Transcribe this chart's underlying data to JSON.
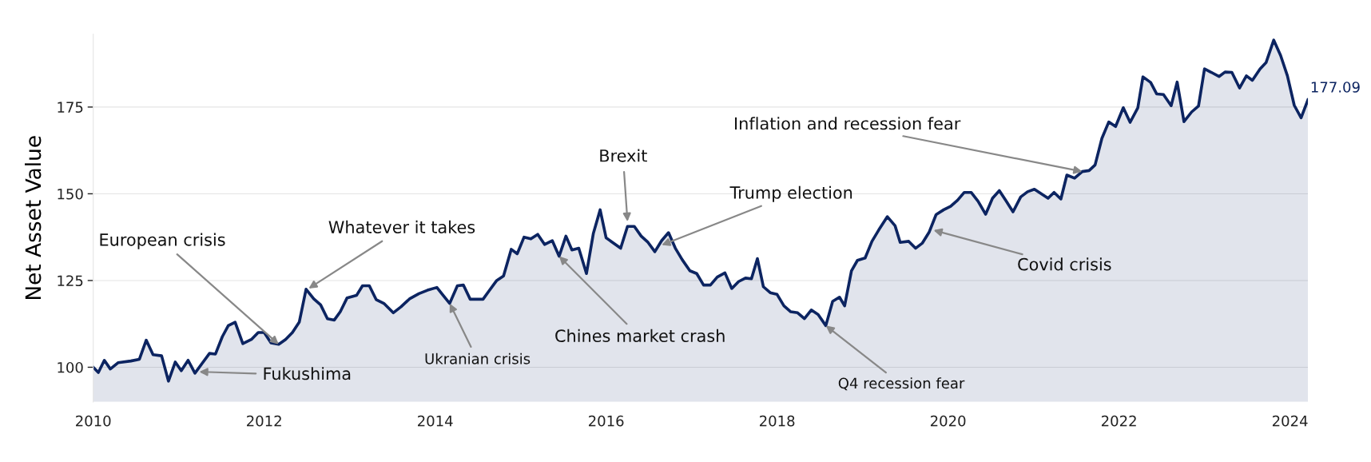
{
  "chart_data": {
    "type": "area",
    "ylabel": "Net Asset Value",
    "x": [
      2010.0,
      2010.06,
      2010.13,
      2010.2,
      2010.29,
      2010.44,
      2010.54,
      2010.62,
      2010.7,
      2010.8,
      2010.88,
      2010.96,
      2011.03,
      2011.11,
      2011.19,
      2011.36,
      2011.43,
      2011.51,
      2011.58,
      2011.66,
      2011.75,
      2011.85,
      2011.93,
      2012.0,
      2012.08,
      2012.17,
      2012.25,
      2012.33,
      2012.41,
      2012.49,
      2012.58,
      2012.66,
      2012.74,
      2012.82,
      2012.89,
      2012.97,
      2013.08,
      2013.15,
      2013.23,
      2013.31,
      2013.4,
      2013.51,
      2013.6,
      2013.7,
      2013.81,
      2013.91,
      2014.02,
      2014.1,
      2014.17,
      2014.26,
      2014.33,
      2014.41,
      2014.49,
      2014.56,
      2014.63,
      2014.72,
      2014.8,
      2014.89,
      2014.96,
      2015.04,
      2015.12,
      2015.2,
      2015.28,
      2015.37,
      2015.45,
      2015.53,
      2015.6,
      2015.68,
      2015.77,
      2015.85,
      2015.93,
      2016.0,
      2016.17,
      2016.25,
      2016.33,
      2016.41,
      2016.49,
      2016.57,
      2016.65,
      2016.73,
      2016.81,
      2016.89,
      2016.98,
      2017.06,
      2017.14,
      2017.22,
      2017.3,
      2017.39,
      2017.47,
      2017.55,
      2017.63,
      2017.7,
      2017.77,
      2017.84,
      2017.92,
      2018.0,
      2018.08,
      2018.16,
      2018.24,
      2018.32,
      2018.4,
      2018.48,
      2018.57,
      2018.65,
      2018.73,
      2018.79,
      2018.87,
      2018.94,
      2019.03,
      2019.11,
      2019.19,
      2019.29,
      2019.38,
      2019.44,
      2019.54,
      2019.62,
      2019.7,
      2019.78,
      2019.86,
      2019.95,
      2020.03,
      2020.11,
      2020.19,
      2020.27,
      2020.35,
      2020.44,
      2020.52,
      2020.6,
      2020.68,
      2020.76,
      2020.85,
      2020.93,
      2021.01,
      2021.17,
      2021.24,
      2021.32,
      2021.39,
      2021.48,
      2021.57,
      2021.65,
      2021.72,
      2021.8,
      2021.88,
      2021.96,
      2022.05,
      2022.13,
      2022.22,
      2022.28,
      2022.37,
      2022.44,
      2022.52,
      2022.61,
      2022.68,
      2022.76,
      2022.85,
      2022.93,
      2023.0,
      2023.08,
      2023.17,
      2023.24,
      2023.32,
      2023.41,
      2023.49,
      2023.56,
      2023.65,
      2023.72,
      2023.81,
      2023.89,
      2023.97,
      2024.05,
      2024.13,
      2024.21
    ],
    "series": [
      {
        "color": "#0c2461",
        "values": [
          100,
          98.5,
          102,
          99.5,
          101.3,
          101.8,
          102.3,
          107.8,
          103.6,
          103.3,
          96,
          101.5,
          99,
          102,
          98.3,
          104,
          103.8,
          108.8,
          112,
          113,
          106.8,
          108,
          110,
          110,
          107,
          106.6,
          108,
          110,
          113,
          122.5,
          119.7,
          118,
          114,
          113.6,
          116,
          120,
          120.7,
          123.5,
          123.5,
          119.5,
          118.4,
          115.7,
          117.4,
          119.7,
          121.2,
          122.2,
          123,
          120.5,
          118.4,
          123.5,
          123.7,
          119.6,
          119.6,
          119.6,
          122,
          125,
          126.3,
          134,
          132.7,
          137.5,
          137,
          138.3,
          135.4,
          136.5,
          132,
          137.8,
          133.8,
          134.3,
          127,
          138.5,
          145.4,
          137.3,
          134.3,
          140.6,
          140.6,
          137.8,
          136,
          133.3,
          136.5,
          138.8,
          134.3,
          131,
          127.8,
          127,
          123.7,
          123.7,
          126,
          127.2,
          122.7,
          124.7,
          125.7,
          125.5,
          131.3,
          123.2,
          121.5,
          121,
          117.7,
          116,
          115.7,
          114,
          116.5,
          115.2,
          112,
          119,
          120.2,
          117.7,
          127.8,
          130.8,
          131.5,
          136.3,
          139.6,
          143.4,
          140.8,
          136,
          136.3,
          134.3,
          135.8,
          139,
          144,
          145.4,
          146.4,
          148.1,
          150.4,
          150.4,
          147.9,
          144.1,
          148.7,
          150.9,
          147.9,
          144.8,
          149.1,
          150.6,
          151.3,
          148.7,
          150.4,
          148.5,
          155.4,
          154.5,
          156.4,
          156.7,
          158.3,
          166,
          170.7,
          169.4,
          174.8,
          170.6,
          174.8,
          183.7,
          182.1,
          178.8,
          178.6,
          175.4,
          182.2,
          170.8,
          173.6,
          175.3,
          186,
          185,
          183.8,
          185.1,
          185,
          180.5,
          184,
          182.7,
          186,
          187.8,
          194.3,
          189.9,
          184,
          175.5,
          171.9,
          177.09
        ],
        "value_labels": [
          null,
          null,
          null,
          null,
          null,
          null,
          null,
          null,
          null,
          null,
          null,
          null,
          null,
          null,
          null,
          null,
          null,
          null,
          null,
          null,
          null,
          null,
          null,
          null,
          null,
          null,
          null,
          null,
          null,
          null,
          null,
          null,
          null,
          null,
          null,
          null,
          null,
          null,
          null,
          null,
          null,
          null,
          null,
          null,
          null,
          null,
          null,
          null,
          null,
          null,
          null,
          null,
          null,
          null,
          null,
          null,
          null,
          null,
          null,
          null,
          null,
          null,
          null,
          null,
          null,
          null,
          null,
          null,
          null,
          null,
          null,
          null,
          null,
          null,
          null,
          null,
          null,
          null,
          null,
          null,
          null,
          null,
          null,
          null,
          null,
          null,
          null,
          null,
          null,
          null,
          null,
          null,
          null,
          null,
          null,
          null,
          null,
          null,
          null,
          null,
          null,
          null,
          null,
          null,
          null,
          null,
          null,
          null,
          null,
          null,
          null,
          null,
          null,
          null,
          null,
          null,
          null,
          null,
          null,
          null,
          null,
          null,
          null,
          null,
          null,
          null,
          null,
          null,
          null,
          null,
          null,
          null,
          null,
          null,
          null,
          null,
          null,
          null,
          null,
          null,
          null,
          null,
          null,
          null,
          null,
          null,
          null,
          null,
          null,
          null,
          null,
          null,
          null,
          null,
          null,
          null,
          null,
          null,
          null,
          null,
          null,
          null,
          null,
          null,
          null,
          null,
          null,
          null,
          null,
          null,
          null,
          "177.09"
        ]
      }
    ],
    "xlim": [
      2010,
      2024.21
    ],
    "ylim": [
      90,
      196
    ],
    "xticks": [
      2010,
      2012,
      2014,
      2016,
      2018,
      2020,
      2022,
      2024
    ],
    "yticks": [
      100,
      125,
      150,
      175
    ],
    "grid": "y",
    "annotations": [
      {
        "text": "European crisis",
        "x": 2012.17,
        "y": 106.6
      },
      {
        "text": "Fukushima",
        "x": 2011.24,
        "y": 98.7
      },
      {
        "text": "Whatever it takes",
        "x": 2012.52,
        "y": 122.7
      },
      {
        "text": "Ukranian crisis",
        "x": 2014.17,
        "y": 118.4
      },
      {
        "text": "Chines market crash",
        "x": 2015.45,
        "y": 132
      },
      {
        "text": "Brexit",
        "x": 2016.25,
        "y": 142
      },
      {
        "text": "Trump election",
        "x": 2016.65,
        "y": 135.2
      },
      {
        "text": "Q4 recession fear",
        "x": 2018.57,
        "y": 112
      },
      {
        "text": "Covid crisis",
        "x": 2019.83,
        "y": 139.5
      },
      {
        "text": "Inflation and recession fear",
        "x": 2021.57,
        "y": 156.4
      }
    ]
  }
}
